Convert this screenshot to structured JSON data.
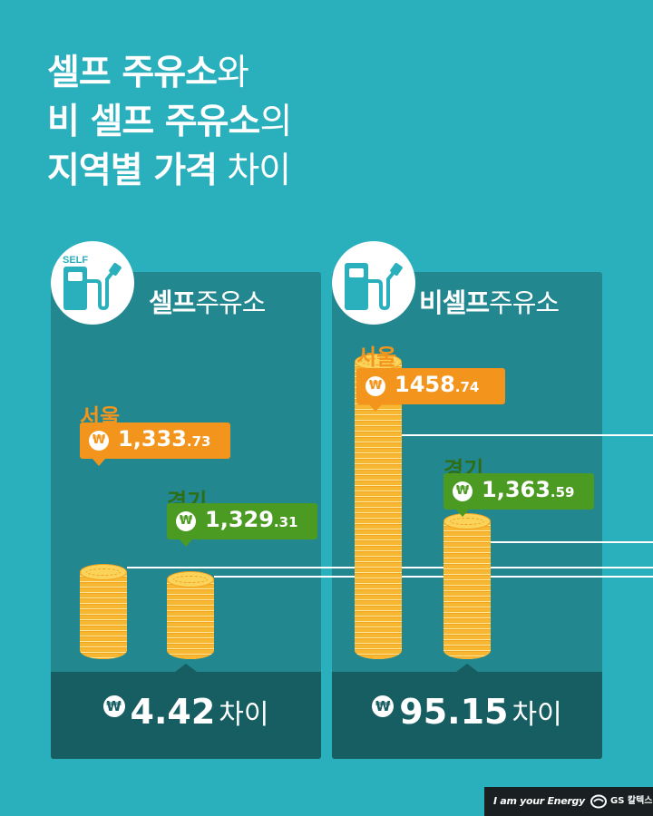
{
  "title": {
    "line1_bold": "셀프 주유소",
    "line1_light": "와",
    "line2_bold": "비 셀프 주유소",
    "line2_light": "의",
    "line3_bold": "지역별 가격",
    "line3_light": " 차이"
  },
  "panels": [
    {
      "title_bold": "셀프",
      "title_light": "주유소",
      "badge_text": "SELF",
      "regions": [
        {
          "name": "서울",
          "price_main": "1,333",
          "price_decimal": ".73",
          "color": "#f3951c"
        },
        {
          "name": "경기",
          "price_main": "1,329",
          "price_decimal": ".31",
          "color": "#4b9a22"
        }
      ],
      "diff_value": "4.42",
      "diff_suffix": "차이"
    },
    {
      "title_bold": "비셀프",
      "title_light": "주유소",
      "regions": [
        {
          "name": "서울",
          "price_main": "1458",
          "price_decimal": ".74",
          "color": "#f3951c"
        },
        {
          "name": "경기",
          "price_main": "1,363",
          "price_decimal": ".59",
          "color": "#4b9a22"
        }
      ],
      "diff_value": "95.15",
      "diff_suffix": "차이"
    }
  ],
  "currency_symbol": "₩",
  "footer": {
    "slogan": "I am your Energy",
    "brand": "GS 칼텍스"
  },
  "colors": {
    "background": "#2ab0bd",
    "panel": "#23878f",
    "panel_bottom": "#175e63",
    "seoul_tag": "#f3951c",
    "gyeonggi_tag": "#4b9a22",
    "coin": "#f7b733"
  },
  "chart_data": {
    "type": "bar",
    "categories": [
      "셀프주유소",
      "비셀프주유소"
    ],
    "series": [
      {
        "name": "서울",
        "values": [
          1333.73,
          1458.74
        ]
      },
      {
        "name": "경기",
        "values": [
          1329.31,
          1363.59
        ]
      }
    ],
    "differences": [
      4.42,
      95.15
    ],
    "title": "셀프 주유소와 비 셀프 주유소의 지역별 가격 차이"
  }
}
